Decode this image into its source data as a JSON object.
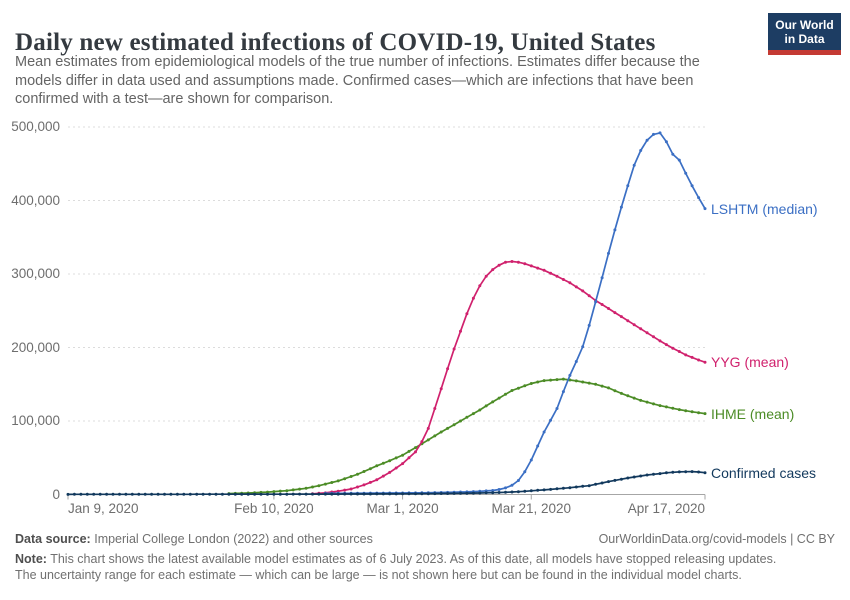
{
  "chart_data": {
    "type": "line",
    "title": "Daily new estimated infections of COVID-19, United States",
    "subtitle": "Mean estimates from epidemiological models of the true number of infections. Estimates differ because the\nmodels differ in data used and assumptions made. Confirmed cases—which are infections that have been\nconfirmed with a test—are shown for comparison.",
    "x_range_days": 99,
    "x_axis": {
      "ticks": [
        {
          "label": "Jan 9, 2020",
          "day": 0,
          "align": "left"
        },
        {
          "label": "Feb 10, 2020",
          "day": 32,
          "align": "center"
        },
        {
          "label": "Mar 1, 2020",
          "day": 52,
          "align": "center"
        },
        {
          "label": "Mar 21, 2020",
          "day": 72,
          "align": "center"
        },
        {
          "label": "Apr 17, 2020",
          "day": 99,
          "align": "right"
        }
      ]
    },
    "y_axis": {
      "max": 500000,
      "gridlines": "dashed",
      "ticks": [
        {
          "value": 0,
          "label": "0"
        },
        {
          "value": 100000,
          "label": "100,000"
        },
        {
          "value": 200000,
          "label": "200,000"
        },
        {
          "value": 300000,
          "label": "300,000"
        },
        {
          "value": 400000,
          "label": "400,000"
        },
        {
          "value": 500000,
          "label": "500,000"
        }
      ]
    },
    "series": [
      {
        "name": "IHME (mean)",
        "color": "#4c8c26",
        "points": [
          [
            25,
            1200
          ],
          [
            28,
            2000
          ],
          [
            31,
            3300
          ],
          [
            34,
            5200
          ],
          [
            37,
            8500
          ],
          [
            39,
            12000
          ],
          [
            42,
            18500
          ],
          [
            45,
            27500
          ],
          [
            48,
            39000
          ],
          [
            50,
            46000
          ],
          [
            52,
            53500
          ],
          [
            55,
            69000
          ],
          [
            58,
            85000
          ],
          [
            61,
            100000
          ],
          [
            64,
            115000
          ],
          [
            66,
            126000
          ],
          [
            69,
            141500
          ],
          [
            72,
            151000
          ],
          [
            74,
            155000
          ],
          [
            77,
            157000
          ],
          [
            79,
            154500
          ],
          [
            82,
            150000
          ],
          [
            84,
            145000
          ],
          [
            86,
            137500
          ],
          [
            89,
            128000
          ],
          [
            92,
            121000
          ],
          [
            95,
            115500
          ],
          [
            97,
            112500
          ],
          [
            99,
            110000
          ]
        ]
      },
      {
        "name": "YYG (mean)",
        "color": "#d0216d",
        "points": [
          [
            38,
            1000
          ],
          [
            40,
            2200
          ],
          [
            42,
            4500
          ],
          [
            44,
            7500
          ],
          [
            46,
            13000
          ],
          [
            48,
            20000
          ],
          [
            50,
            30000
          ],
          [
            52,
            42000
          ],
          [
            54,
            58000
          ],
          [
            55,
            72000
          ],
          [
            56,
            90000
          ],
          [
            57,
            117000
          ],
          [
            58,
            144000
          ],
          [
            59,
            171000
          ],
          [
            60,
            198000
          ],
          [
            61,
            222000
          ],
          [
            62,
            246000
          ],
          [
            63,
            267000
          ],
          [
            64,
            284000
          ],
          [
            65,
            297000
          ],
          [
            66,
            306000
          ],
          [
            67,
            312000
          ],
          [
            68,
            316000
          ],
          [
            69,
            317000
          ],
          [
            70,
            316000
          ],
          [
            71,
            314000
          ],
          [
            72,
            311000
          ],
          [
            74,
            305000
          ],
          [
            76,
            297000
          ],
          [
            78,
            288000
          ],
          [
            80,
            277000
          ],
          [
            82,
            264000
          ],
          [
            84,
            253000
          ],
          [
            86,
            242000
          ],
          [
            88,
            231000
          ],
          [
            90,
            220000
          ],
          [
            92,
            209000
          ],
          [
            94,
            199000
          ],
          [
            96,
            190000
          ],
          [
            98,
            183000
          ],
          [
            99,
            180000
          ]
        ]
      },
      {
        "name": "LSHTM (median)",
        "color": "#3b6fc4",
        "points": [
          [
            40,
            1500
          ],
          [
            44,
            1700
          ],
          [
            48,
            1900
          ],
          [
            52,
            2100
          ],
          [
            55,
            2300
          ],
          [
            58,
            2700
          ],
          [
            60,
            3100
          ],
          [
            62,
            3600
          ],
          [
            64,
            4400
          ],
          [
            66,
            5500
          ],
          [
            67,
            6800
          ],
          [
            68,
            9000
          ],
          [
            69,
            12500
          ],
          [
            70,
            19000
          ],
          [
            71,
            31000
          ],
          [
            72,
            47000
          ],
          [
            73,
            66000
          ],
          [
            74,
            85000
          ],
          [
            75,
            101000
          ],
          [
            76,
            117000
          ],
          [
            77,
            140000
          ],
          [
            78,
            162000
          ],
          [
            79,
            181000
          ],
          [
            80,
            201000
          ],
          [
            81,
            230000
          ],
          [
            82,
            262000
          ],
          [
            83,
            295000
          ],
          [
            84,
            328000
          ],
          [
            85,
            360000
          ],
          [
            86,
            391000
          ],
          [
            87,
            420000
          ],
          [
            88,
            448000
          ],
          [
            89,
            468000
          ],
          [
            90,
            482000
          ],
          [
            91,
            490000
          ],
          [
            92,
            492000
          ],
          [
            93,
            480000
          ],
          [
            94,
            463000
          ],
          [
            95,
            455000
          ],
          [
            96,
            437000
          ],
          [
            97,
            420000
          ],
          [
            98,
            404000
          ],
          [
            99,
            389000
          ]
        ]
      },
      {
        "name": "Confirmed cases",
        "color": "#12395d",
        "points": [
          [
            0,
            200
          ],
          [
            4,
            250
          ],
          [
            8,
            300
          ],
          [
            12,
            300
          ],
          [
            16,
            300
          ],
          [
            20,
            350
          ],
          [
            24,
            400
          ],
          [
            28,
            400
          ],
          [
            32,
            450
          ],
          [
            36,
            500
          ],
          [
            40,
            550
          ],
          [
            44,
            650
          ],
          [
            48,
            750
          ],
          [
            51,
            850
          ],
          [
            54,
            1000
          ],
          [
            57,
            1200
          ],
          [
            60,
            1500
          ],
          [
            62,
            1800
          ],
          [
            64,
            2100
          ],
          [
            66,
            2500
          ],
          [
            68,
            3000
          ],
          [
            70,
            3800
          ],
          [
            72,
            5000
          ],
          [
            74,
            6300
          ],
          [
            76,
            7700
          ],
          [
            78,
            9300
          ],
          [
            81,
            12000
          ],
          [
            84,
            17500
          ],
          [
            87,
            22500
          ],
          [
            90,
            26500
          ],
          [
            93,
            29500
          ],
          [
            95,
            30800
          ],
          [
            97,
            31200
          ],
          [
            98,
            30600
          ],
          [
            99,
            29600
          ]
        ]
      }
    ]
  },
  "logo": {
    "line1": "Our World",
    "line2": "in Data"
  },
  "footer": {
    "datasource_label": "Data source:",
    "datasource": "Imperial College London (2022) and other sources",
    "attribution": "OurWorldinData.org/covid-models | CC BY",
    "note_label": "Note:",
    "note": "This chart shows the latest available model estimates as of 6 July 2023. As of this date, all models have stopped releasing updates.\nThe uncertainty range for each estimate — which can be large — is not shown here but can be found in the individual model charts."
  }
}
